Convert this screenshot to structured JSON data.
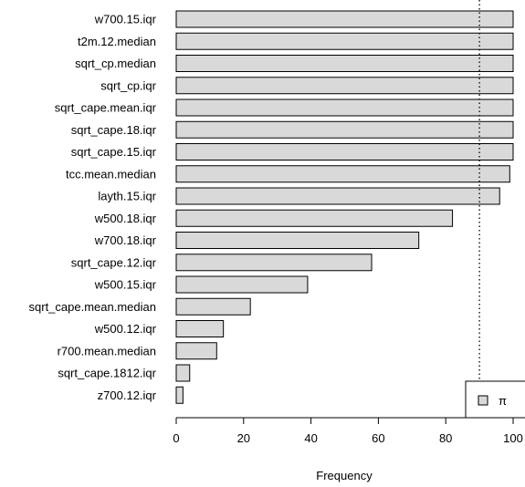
{
  "chart_data": {
    "type": "bar",
    "orientation": "horizontal",
    "categories": [
      "w700.15.iqr",
      "t2m.12.median",
      "sqrt_cp.median",
      "sqrt_cp.iqr",
      "sqrt_cape.mean.iqr",
      "sqrt_cape.18.iqr",
      "sqrt_cape.15.iqr",
      "tcc.mean.median",
      "layth.15.iqr",
      "w500.18.iqr",
      "w700.18.iqr",
      "sqrt_cape.12.iqr",
      "w500.15.iqr",
      "sqrt_cape.mean.median",
      "w500.12.iqr",
      "r700.mean.median",
      "sqrt_cape.1812.iqr",
      "z700.12.iqr"
    ],
    "values": [
      100,
      100,
      100,
      100,
      100,
      100,
      100,
      99,
      96,
      82,
      72,
      58,
      39,
      22,
      14,
      12,
      4,
      2
    ],
    "xlabel": "Frequency",
    "xlim": [
      0,
      100
    ],
    "xticks": [
      0,
      20,
      40,
      60,
      80,
      100
    ],
    "threshold": 90,
    "threshold_style": "dotted",
    "legend": {
      "label": "π",
      "position": "bottom-right"
    },
    "colors": {
      "bar_fill": "#d9d9d9",
      "bar_stroke": "#000000"
    }
  }
}
